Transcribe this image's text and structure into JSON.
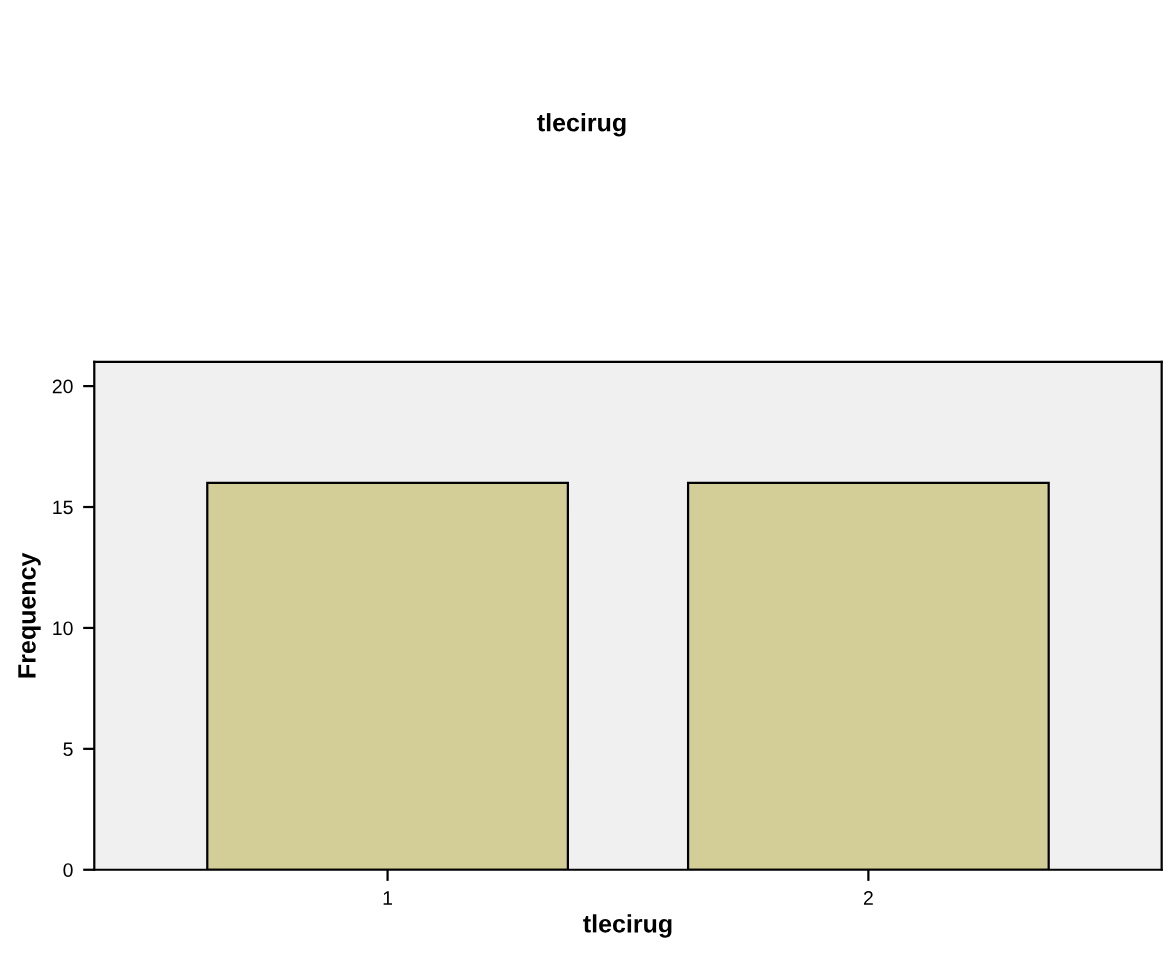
{
  "chart_data": {
    "type": "bar",
    "title": "tlecirug",
    "xlabel": "tlecirug",
    "ylabel": "Frequency",
    "categories": [
      "1",
      "2"
    ],
    "values": [
      16,
      16
    ],
    "color": "#d3ce97",
    "ylim": [
      0,
      21
    ],
    "yticks": [
      0,
      5,
      10,
      15,
      20
    ],
    "grid": false
  }
}
